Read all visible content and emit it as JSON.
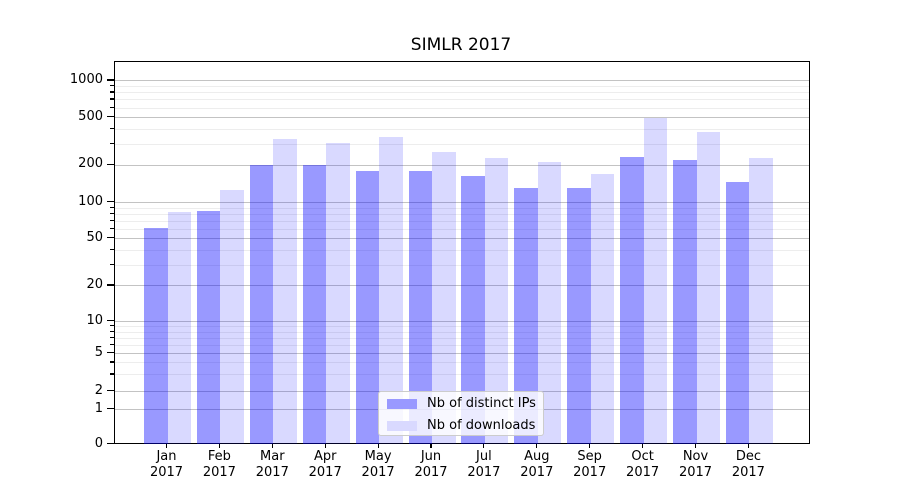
{
  "figure": {
    "title": "SIMLR 2017"
  },
  "axis": {
    "x_months": [
      "Jan",
      "Feb",
      "Mar",
      "Apr",
      "May",
      "Jun",
      "Jul",
      "Aug",
      "Sep",
      "Oct",
      "Nov",
      "Dec"
    ],
    "x_year": "2017",
    "y_tick_labels": [
      "0",
      "1",
      "2",
      "5",
      "10",
      "20",
      "50",
      "100",
      "200",
      "500",
      "1000"
    ]
  },
  "legend": {
    "items": [
      {
        "label": "Nb of distinct IPs",
        "swatch_color": "#9999ff"
      },
      {
        "label": "Nb of downloads",
        "swatch_color": "#d9d9ff"
      }
    ]
  },
  "chart_data": {
    "type": "bar",
    "title": "SIMLR 2017",
    "categories": [
      "Jan 2017",
      "Feb 2017",
      "Mar 2017",
      "Apr 2017",
      "May 2017",
      "Jun 2017",
      "Jul 2017",
      "Aug 2017",
      "Sep 2017",
      "Oct 2017",
      "Nov 2017",
      "Dec 2017"
    ],
    "series": [
      {
        "name": "Nb of distinct IPs",
        "color": "#9999ff",
        "fill_rgba": "rgba(0,0,255,0.4)",
        "values": [
          62,
          86,
          200,
          200,
          181,
          181,
          163,
          132,
          132,
          235,
          222,
          147
        ]
      },
      {
        "name": "Nb of downloads",
        "color": "#d9d9ff",
        "fill_rgba": "rgba(0,0,255,0.15)",
        "values": [
          84,
          126,
          330,
          310,
          345,
          258,
          228,
          214,
          171,
          497,
          381,
          231
        ]
      }
    ],
    "xlabel": "",
    "ylabel": "",
    "yscale": "symlog",
    "ylim": [
      0,
      1430
    ],
    "yticks": [
      0,
      1,
      2,
      5,
      10,
      20,
      50,
      100,
      200,
      500,
      1000
    ],
    "yticks_minor": [
      3,
      4,
      6,
      7,
      8,
      9,
      30,
      40,
      60,
      70,
      80,
      90,
      300,
      400,
      600,
      700,
      800,
      900
    ],
    "grid": "major+minor horizontal",
    "legend_position": "lower center inside plot"
  }
}
